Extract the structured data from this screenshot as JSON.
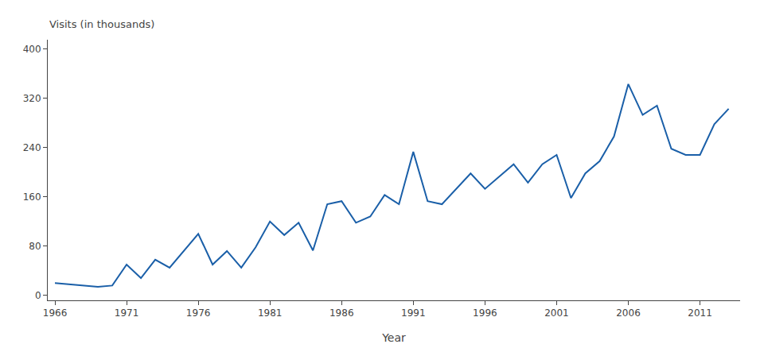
{
  "chart_data": {
    "type": "line",
    "x": [
      1966,
      1967,
      1968,
      1969,
      1970,
      1971,
      1972,
      1973,
      1974,
      1975,
      1976,
      1977,
      1978,
      1979,
      1980,
      1981,
      1982,
      1983,
      1984,
      1985,
      1986,
      1987,
      1988,
      1989,
      1990,
      1991,
      1992,
      1993,
      1994,
      1995,
      1996,
      1997,
      1998,
      1999,
      2000,
      2001,
      2002,
      2003,
      2004,
      2005,
      2006,
      2007,
      2008,
      2009,
      2010,
      2011,
      2012,
      2013
    ],
    "values": [
      20,
      18,
      16,
      14,
      16,
      50,
      28,
      58,
      45,
      72,
      100,
      50,
      72,
      45,
      78,
      120,
      98,
      118,
      73,
      148,
      153,
      118,
      128,
      163,
      148,
      233,
      153,
      148,
      173,
      198,
      173,
      193,
      213,
      183,
      213,
      228,
      158,
      198,
      218,
      258,
      343,
      293,
      308,
      238,
      228,
      228,
      278,
      303
    ],
    "color": "#1a5fa8",
    "xlabel": "Year",
    "ylabel": "Visits (in thousands)",
    "xlim": [
      1965.5,
      2013.8
    ],
    "xticks": [
      1966,
      1971,
      1976,
      1981,
      1986,
      1991,
      1996,
      2001,
      2006,
      2011
    ],
    "ylim": [
      -8,
      415
    ],
    "yticks": [
      0,
      80,
      160,
      240,
      320,
      400
    ],
    "grid": false
  }
}
